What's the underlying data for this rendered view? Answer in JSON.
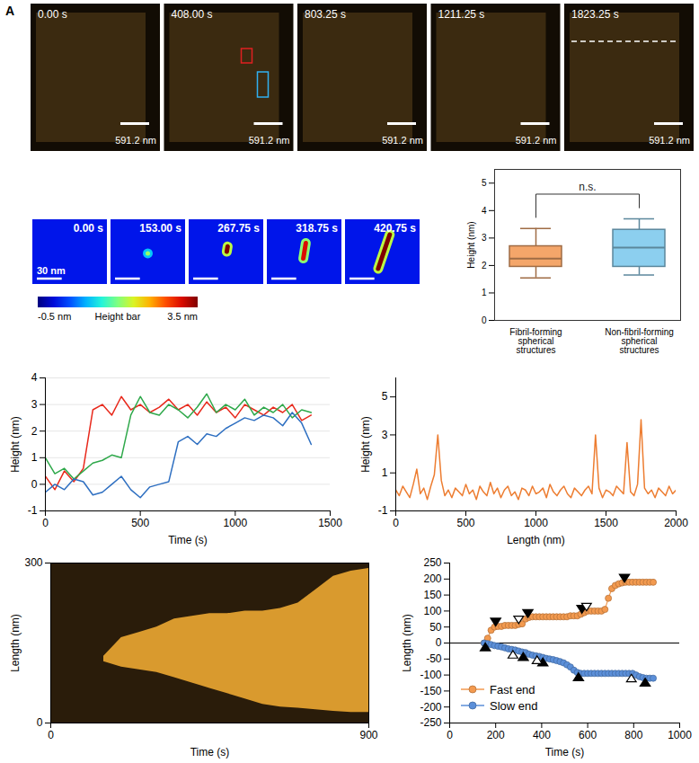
{
  "panel_label": "A",
  "afm_images": {
    "times": [
      "0.00 s",
      "408.00 s",
      "803.25 s",
      "1211.25 s",
      "1823.25 s"
    ],
    "scale_bar": "591.2 nm"
  },
  "height_frames": {
    "times": [
      "0.00 s",
      "153.00 s",
      "267.75 s",
      "318.75 s",
      "420.75 s"
    ],
    "scale_bar": {
      "value": 30,
      "label": "30 nm"
    },
    "extent_nm": [
      90,
      76
    ],
    "background": 0,
    "features": [
      null,
      {
        "segment": [
          45,
          40,
          45,
          40
        ],
        "height": 1.6
      },
      {
        "segment": [
          46,
          38,
          47,
          32
        ],
        "height": 3.5
      },
      {
        "segment": [
          44,
          46,
          47,
          28
        ],
        "height": 3.1
      },
      {
        "segment": [
          40,
          58,
          54,
          18
        ],
        "height": 3.5
      }
    ],
    "colorbar": {
      "range": [
        -0.5,
        3.5
      ],
      "ticks": [
        {
          "value": -0.5,
          "label": "-0.5 nm"
        },
        {
          "value": 3.5,
          "label": "3.5 nm"
        }
      ],
      "title": "Height bar"
    }
  },
  "chart_data": [
    {
      "type": "box",
      "y_label": "Height (nm)",
      "categories": [
        "Fibril-forming spherical structures",
        "Non-fibril-forming spherical structures"
      ],
      "values": [
        {
          "min": 1.55,
          "q1": 1.95,
          "median": 2.25,
          "q3": 2.7,
          "max": 3.35
        },
        {
          "min": 1.65,
          "q1": 1.95,
          "median": 2.65,
          "q3": 3.3,
          "max": 3.7
        }
      ],
      "colors": [
        "#f4a66a",
        "#8ccfef"
      ],
      "ylim": [
        0,
        5.5
      ],
      "yticks": [
        0,
        1,
        2,
        3,
        4,
        5
      ],
      "annotations": [
        {
          "text": "n.s.",
          "between": [
            "Fibril-forming spherical structures",
            "Non-fibril-forming spherical structures"
          ]
        }
      ]
    },
    {
      "type": "line",
      "x_label": "Time (s)",
      "y_label": "Height (nm)",
      "x": [
        0,
        50,
        100,
        150,
        200,
        250,
        300,
        350,
        400,
        450,
        500,
        550,
        600,
        650,
        700,
        750,
        800,
        850,
        900,
        950,
        1000,
        1050,
        1100,
        1150,
        1200,
        1250,
        1300,
        1350,
        1400
      ],
      "series": [
        {
          "color": "#e8291c",
          "values": [
            0.3,
            -0.2,
            0.5,
            0.1,
            0.6,
            2.8,
            3.0,
            2.6,
            3.3,
            2.8,
            3.0,
            2.7,
            2.9,
            3.2,
            2.8,
            3.0,
            2.6,
            3.1,
            2.7,
            2.9,
            2.5,
            3.0,
            2.8,
            2.6,
            2.9,
            2.7,
            3.0,
            2.4,
            2.6
          ]
        },
        {
          "color": "#2ea84a",
          "values": [
            1.0,
            0.4,
            0.6,
            0.2,
            0.5,
            0.8,
            0.9,
            1.1,
            1.0,
            2.6,
            3.3,
            2.7,
            2.6,
            3.0,
            2.8,
            2.5,
            2.9,
            3.4,
            2.7,
            3.0,
            2.8,
            3.2,
            2.6,
            2.9,
            2.7,
            3.0,
            2.5,
            2.8,
            2.7
          ]
        },
        {
          "color": "#2e6fc1",
          "values": [
            -0.3,
            0.0,
            -0.2,
            0.2,
            0.1,
            -0.4,
            -0.3,
            0.0,
            0.3,
            -0.2,
            -0.5,
            -0.1,
            0.0,
            0.1,
            1.6,
            1.8,
            1.5,
            1.9,
            1.8,
            2.1,
            2.3,
            2.5,
            2.4,
            2.6,
            2.5,
            2.2,
            2.7,
            2.3,
            1.5
          ]
        }
      ],
      "xlim": [
        0,
        1500
      ],
      "xticks": [
        0,
        500,
        1000,
        1500
      ],
      "ylim": [
        -1,
        4
      ],
      "yticks": [
        -1,
        0,
        1,
        2,
        3,
        4
      ],
      "grid": true
    },
    {
      "type": "line",
      "x_label": "Length (nm)",
      "y_label": "Height (nm)",
      "x": [
        0,
        25,
        50,
        75,
        100,
        125,
        150,
        175,
        200,
        225,
        250,
        275,
        300,
        325,
        350,
        375,
        400,
        425,
        450,
        475,
        500,
        525,
        550,
        575,
        600,
        625,
        650,
        675,
        700,
        725,
        750,
        775,
        800,
        825,
        850,
        875,
        900,
        925,
        950,
        975,
        1000,
        1025,
        1050,
        1075,
        1100,
        1125,
        1150,
        1175,
        1200,
        1225,
        1250,
        1275,
        1300,
        1325,
        1350,
        1375,
        1400,
        1425,
        1450,
        1475,
        1500,
        1525,
        1550,
        1575,
        1600,
        1625,
        1650,
        1675,
        1700,
        1725,
        1750,
        1775,
        1800,
        1825,
        1850,
        1875,
        1900,
        1925,
        1950,
        1975,
        2000
      ],
      "series": [
        {
          "color": "#ed7d31",
          "values": [
            0.1,
            -0.2,
            0.3,
            0.0,
            -0.3,
            0.4,
            1.2,
            -0.1,
            0.2,
            -0.4,
            0.3,
            0.9,
            3.0,
            0.6,
            -0.2,
            0.1,
            -0.3,
            0.2,
            0.0,
            -0.2,
            0.4,
            -0.1,
            0.1,
            -0.4,
            0.3,
            0.0,
            -0.2,
            0.5,
            -0.1,
            0.2,
            -0.3,
            0.1,
            0.3,
            -0.2,
            0.0,
            -0.4,
            0.2,
            0.1,
            -0.2,
            0.3,
            -0.1,
            0.0,
            0.2,
            -0.3,
            0.4,
            0.0,
            -0.2,
            0.1,
            0.3,
            -0.1,
            -0.3,
            0.2,
            0.0,
            -0.2,
            0.1,
            0.3,
            -0.1,
            3.0,
            0.2,
            -0.3,
            0.1,
            0.0,
            -0.2,
            0.3,
            0.1,
            -0.1,
            2.6,
            0.0,
            -0.2,
            0.4,
            3.8,
            0.2,
            -0.1,
            0.1,
            -0.3,
            0.2,
            0.0,
            -0.2,
            0.3,
            -0.1,
            0.1
          ]
        }
      ],
      "xlim": [
        0,
        2000
      ],
      "xticks": [
        0,
        500,
        1000,
        1500,
        2000
      ],
      "ylim": [
        -1,
        6
      ],
      "yticks": [
        -1,
        1,
        3,
        5
      ],
      "grid": false
    },
    {
      "type": "area",
      "x_label": "Time (s)",
      "y_label": "Length (nm)",
      "x": [
        0,
        50,
        100,
        150,
        200,
        250,
        300,
        350,
        400,
        450,
        500,
        550,
        600,
        650,
        700,
        750,
        800,
        850,
        900
      ],
      "series": [
        {
          "color": "#d99a2e",
          "lower": [
            null,
            null,
            null,
            115,
            105,
            100,
            95,
            85,
            75,
            65,
            55,
            45,
            35,
            30,
            28,
            25,
            22,
            20,
            20
          ],
          "upper": [
            null,
            null,
            null,
            125,
            160,
            170,
            180,
            195,
            200,
            205,
            205,
            210,
            210,
            215,
            225,
            250,
            275,
            285,
            290
          ]
        }
      ],
      "xlim": [
        0,
        900
      ],
      "xticks": [
        0,
        900
      ],
      "ylim": [
        0,
        300
      ],
      "yticks": [
        0,
        300
      ]
    },
    {
      "type": "line",
      "x_label": "Time (s)",
      "y_label": "Length (nm)",
      "x": [
        150,
        165,
        180,
        195,
        210,
        225,
        240,
        255,
        270,
        285,
        300,
        315,
        330,
        345,
        360,
        375,
        390,
        405,
        420,
        435,
        450,
        465,
        480,
        495,
        510,
        525,
        540,
        555,
        570,
        585,
        600,
        615,
        630,
        645,
        660,
        675,
        690,
        705,
        720,
        735,
        750,
        765,
        780,
        795,
        810,
        825,
        840,
        855,
        870,
        885
      ],
      "series": [
        {
          "name": "Fast end",
          "color": "#f39a4f",
          "marker": "circle",
          "values": [
            0,
            15,
            40,
            50,
            52,
            52,
            55,
            55,
            55,
            55,
            58,
            60,
            75,
            80,
            82,
            82,
            82,
            82,
            82,
            82,
            82,
            82,
            82,
            82,
            82,
            85,
            85,
            85,
            90,
            95,
            100,
            100,
            100,
            100,
            100,
            105,
            140,
            170,
            180,
            185,
            188,
            190,
            190,
            190,
            190,
            190,
            190,
            190,
            190,
            190
          ],
          "events": {
            "marker": "triangle-down",
            "filled": {
              "x": [
                200,
                340,
                575,
                760
              ],
              "y": [
                68,
                95,
                108,
                205
              ]
            },
            "open": {
              "x": [
                300,
                595
              ],
              "y": [
                75,
                115
              ]
            }
          }
        },
        {
          "name": "Slow end",
          "color": "#5b8fd9",
          "marker": "circle",
          "values": [
            0,
            -2,
            -5,
            -8,
            -10,
            -12,
            -15,
            -18,
            -20,
            -22,
            -25,
            -28,
            -30,
            -35,
            -38,
            -40,
            -42,
            -45,
            -48,
            -50,
            -52,
            -55,
            -58,
            -62,
            -68,
            -75,
            -85,
            -92,
            -95,
            -95,
            -95,
            -95,
            -95,
            -95,
            -95,
            -95,
            -95,
            -95,
            -95,
            -95,
            -95,
            -95,
            -95,
            -95,
            -100,
            -105,
            -108,
            -110,
            -110,
            -110
          ],
          "events": {
            "marker": "triangle-up",
            "filled": {
              "x": [
                155,
                320,
                405,
                560,
                850
              ],
              "y": [
                -15,
                -45,
                -62,
                -108,
                -125
              ]
            },
            "open": {
              "x": [
                275,
                380,
                790
              ],
              "y": [
                -38,
                -55,
                -112
              ]
            }
          }
        }
      ],
      "reference_line_y": 0,
      "xlim": [
        0,
        1000
      ],
      "xticks": [
        0,
        200,
        400,
        600,
        800,
        1000
      ],
      "ylim": [
        -250,
        250
      ],
      "yticks": [
        -250,
        -200,
        -150,
        -100,
        -50,
        0,
        50,
        100,
        150,
        200,
        250
      ],
      "legend": "lower left"
    }
  ]
}
